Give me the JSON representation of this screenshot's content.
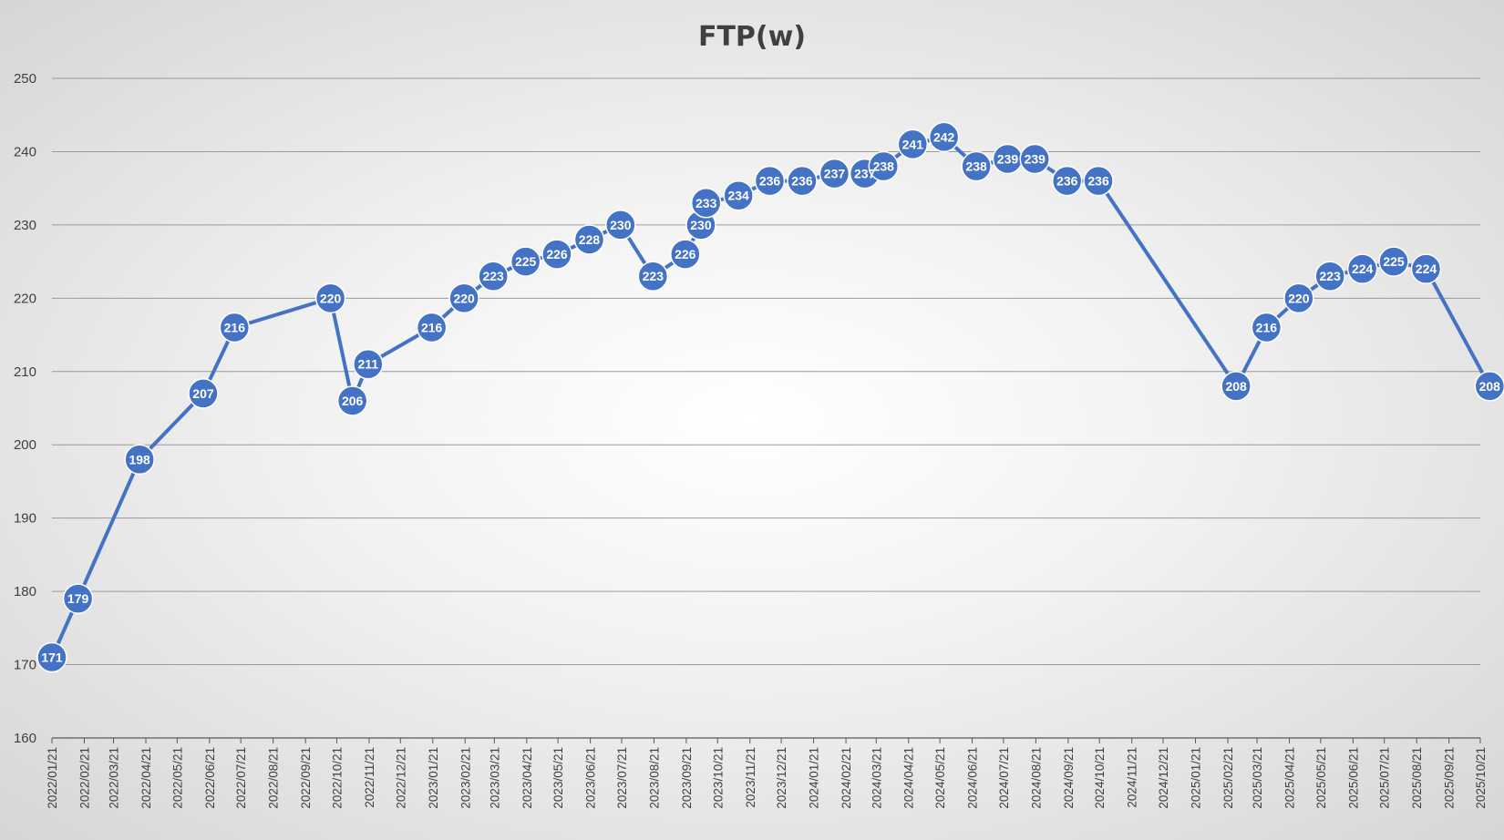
{
  "chart_data": {
    "type": "line",
    "title": "FTP(w)",
    "xlabel": "",
    "ylabel": "",
    "ylim": [
      160,
      250
    ],
    "yticks": [
      "160",
      "170",
      "180",
      "190",
      "200",
      "210",
      "220",
      "230",
      "240",
      "250"
    ],
    "grid": true,
    "legend": "none",
    "x_tick_labels": [
      "2022/01/21",
      "2022/02/21",
      "2022/03/21",
      "2022/04/21",
      "2022/05/21",
      "2022/06/21",
      "2022/07/21",
      "2022/08/21",
      "2022/09/21",
      "2022/10/21",
      "2022/11/21",
      "2022/12/21",
      "2023/01/21",
      "2023/02/21",
      "2023/03/21",
      "2023/04/21",
      "2023/05/21",
      "2023/06/21",
      "2023/07/21",
      "2023/08/21",
      "2023/09/21",
      "2023/10/21",
      "2023/11/21",
      "2023/12/21",
      "2024/01/21",
      "2024/02/21",
      "2024/03/21",
      "2024/04/21",
      "2024/05/21",
      "2024/06/21",
      "2024/07/21",
      "2024/08/21",
      "2024/09/21",
      "2024/10/21",
      "2024/11/21",
      "2024/12/21",
      "2025/01/21",
      "2025/02/21",
      "2025/03/21",
      "2025/04/21",
      "2025/05/21",
      "2025/06/21",
      "2025/07/21",
      "2025/08/21",
      "2025/09/21",
      "2025/10/21"
    ],
    "colors": {
      "series": "#4472C4",
      "label_text": "#ffffff",
      "grid": "#9a9a9a",
      "text": "#404040"
    },
    "series": [
      {
        "points": [
          {
            "x": "2022/01/21",
            "y": 171
          },
          {
            "x": "2022/02/15",
            "y": 179
          },
          {
            "x": "2022/04/15",
            "y": 198
          },
          {
            "x": "2022/06/15",
            "y": 207
          },
          {
            "x": "2022/07/15",
            "y": 216
          },
          {
            "x": "2022/10/15",
            "y": 220
          },
          {
            "x": "2022/11/05",
            "y": 206
          },
          {
            "x": "2022/11/20",
            "y": 211
          },
          {
            "x": "2023/01/20",
            "y": 216
          },
          {
            "x": "2023/02/20",
            "y": 220
          },
          {
            "x": "2023/03/20",
            "y": 223
          },
          {
            "x": "2023/04/20",
            "y": 225
          },
          {
            "x": "2023/05/20",
            "y": 226
          },
          {
            "x": "2023/06/20",
            "y": 228
          },
          {
            "x": "2023/07/20",
            "y": 230
          },
          {
            "x": "2023/08/20",
            "y": 223
          },
          {
            "x": "2023/09/20",
            "y": 226
          },
          {
            "x": "2023/10/05",
            "y": 230
          },
          {
            "x": "2023/10/10",
            "y": 233
          },
          {
            "x": "2023/11/10",
            "y": 234
          },
          {
            "x": "2023/12/10",
            "y": 236
          },
          {
            "x": "2024/01/10",
            "y": 236
          },
          {
            "x": "2024/02/10",
            "y": 237
          },
          {
            "x": "2024/03/10",
            "y": 237
          },
          {
            "x": "2024/03/28",
            "y": 238
          },
          {
            "x": "2024/04/25",
            "y": 241
          },
          {
            "x": "2024/05/25",
            "y": 242
          },
          {
            "x": "2024/06/25",
            "y": 238
          },
          {
            "x": "2024/07/25",
            "y": 239
          },
          {
            "x": "2024/08/20",
            "y": 239
          },
          {
            "x": "2024/09/20",
            "y": 236
          },
          {
            "x": "2024/10/20",
            "y": 236
          },
          {
            "x": "2025/03/01",
            "y": 208
          },
          {
            "x": "2025/03/30",
            "y": 216
          },
          {
            "x": "2025/04/30",
            "y": 220
          },
          {
            "x": "2025/05/30",
            "y": 223
          },
          {
            "x": "2025/06/30",
            "y": 224
          },
          {
            "x": "2025/07/30",
            "y": 225
          },
          {
            "x": "2025/08/30",
            "y": 224
          },
          {
            "x": "2025/10/30",
            "y": 208
          }
        ]
      }
    ]
  }
}
